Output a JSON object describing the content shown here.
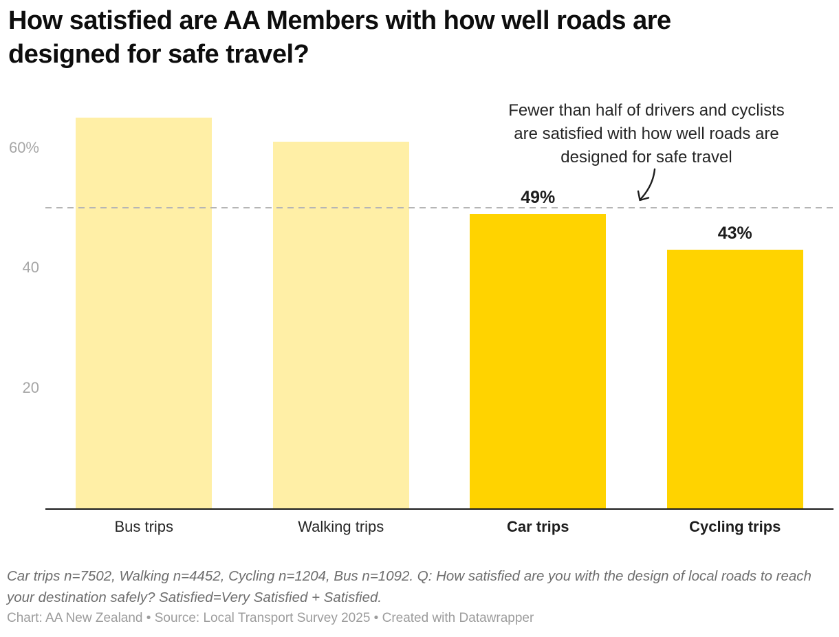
{
  "header": {
    "title": "How satisfied are AA Members with how well roads are\ndesigned for safe travel?"
  },
  "chart_data": {
    "type": "bar",
    "title": "How satisfied are AA Members with how well roads are designed for safe travel?",
    "categories": [
      "Bus trips",
      "Walking trips",
      "Car trips",
      "Cycling trips"
    ],
    "values": [
      65,
      61,
      49,
      43
    ],
    "unit": "%",
    "highlighted": [
      false,
      false,
      true,
      true
    ],
    "value_labels": [
      "",
      "",
      "49%",
      "43%"
    ],
    "xlabel": "",
    "ylabel": "",
    "ylim": [
      0,
      70
    ],
    "grid": false,
    "y_axis": {
      "ticks": [
        {
          "value": 20,
          "label": "20"
        },
        {
          "value": 40,
          "label": "40"
        },
        {
          "value": 60,
          "label": "60%"
        }
      ]
    },
    "reference_line": {
      "value": 50,
      "style": "dashed"
    },
    "colors": {
      "highlight_bar": "#FFD300",
      "muted_bar": "#FFEFA6",
      "axis_line": "#1a1a1a",
      "tick_label": "#a7a7a7",
      "reference_line": "#b5b5b5"
    },
    "annotation": {
      "text": "Fewer than half of drivers and cyclists\nare satisfied with how well roads are\ndesigned for safe travel",
      "arrow": "curved-down-left"
    }
  },
  "footer": {
    "notes": "Car trips n=7502, Walking n=4452, Cycling n=1204, Bus n=1092. Q: How satisfied are you with the design of local roads to reach your destination safely? Satisfied=Very Satisfied + Satisfied.",
    "byline": "Chart: AA New Zealand • Source: Local Transport Survey 2025 • Created with Datawrapper"
  }
}
